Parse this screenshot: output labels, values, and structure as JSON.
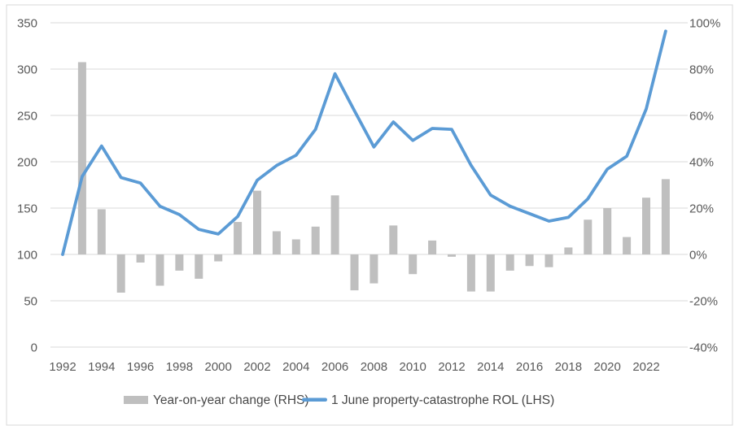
{
  "chart_data": {
    "type": "combo-bar-line",
    "title": "",
    "x": [
      1992,
      1993,
      1994,
      1995,
      1996,
      1997,
      1998,
      1999,
      2000,
      2001,
      2002,
      2003,
      2004,
      2005,
      2006,
      2007,
      2008,
      2009,
      2010,
      2011,
      2012,
      2013,
      2014,
      2015,
      2016,
      2017,
      2018,
      2019,
      2020,
      2021,
      2022,
      2023
    ],
    "x_tick_labels": [
      "1992",
      "1994",
      "1996",
      "1998",
      "2000",
      "2002",
      "2004",
      "2006",
      "2008",
      "2010",
      "2012",
      "2014",
      "2016",
      "2018",
      "2020",
      "2022"
    ],
    "series": [
      {
        "name": "Year-on-year change (RHS)",
        "type": "bar",
        "axis": "right",
        "unit": "%",
        "color": "#BFBFBF",
        "values": [
          null,
          83,
          19.5,
          -16.5,
          -3.5,
          -13.5,
          -7,
          -10.5,
          -3,
          14,
          27.5,
          10,
          6.5,
          12,
          25.5,
          -15.5,
          -12.5,
          12.5,
          -8.5,
          6,
          -1,
          -16,
          -16,
          -7,
          -5,
          -5.5,
          3,
          15,
          20,
          7.5,
          24.5,
          32.5
        ]
      },
      {
        "name": "1 June property-catastrophe ROL (LHS)",
        "type": "line",
        "axis": "left",
        "unit": "index",
        "color": "#5B9BD5",
        "values": [
          100,
          184,
          217,
          183,
          177,
          152,
          143,
          127,
          122,
          141,
          180,
          196,
          207,
          235,
          295,
          255,
          216,
          243,
          223,
          236,
          235,
          196,
          164,
          152,
          144,
          136,
          140,
          160,
          192,
          206,
          257,
          341
        ]
      }
    ],
    "left_axis": {
      "min": 0,
      "max": 350,
      "step": 50,
      "labels": [
        "0",
        "50",
        "100",
        "150",
        "200",
        "250",
        "300",
        "350"
      ]
    },
    "right_axis": {
      "min": -40,
      "max": 100,
      "step": 20,
      "labels": [
        "-40%",
        "-20%",
        "0%",
        "20%",
        "40%",
        "60%",
        "80%",
        "100%"
      ]
    },
    "grid": true,
    "legend_position": "bottom",
    "bar_baseline_left_value": 100,
    "bar_baseline_right_value": 0
  },
  "legend": {
    "bar_label": "Year-on-year change (RHS)",
    "line_label": "1 June property-catastrophe ROL (LHS)"
  },
  "colors": {
    "bar": "#BFBFBF",
    "line": "#5B9BD5",
    "grid": "#D9D9D9",
    "frame": "#D9D9D9",
    "tick_text": "#595959",
    "legend_text": "#484848",
    "background": "#FFFFFF"
  }
}
